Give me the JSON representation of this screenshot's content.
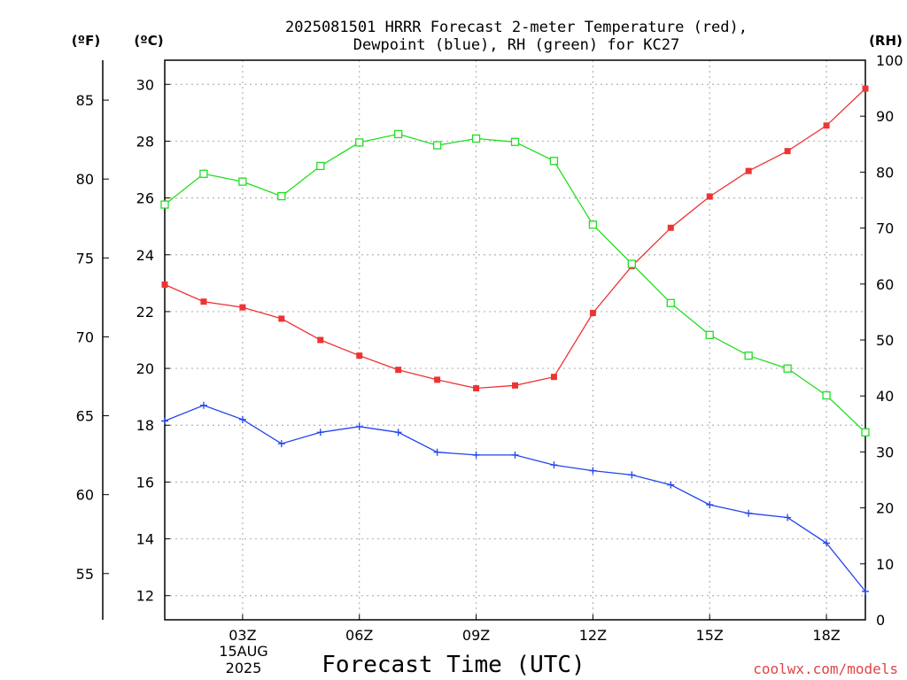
{
  "chart_data": {
    "type": "line",
    "title_line1": "2025081501 HRRR Forecast 2-meter Temperature (red),",
    "title_line2": "Dewpoint (blue), RH (green) for KC27",
    "xlabel": "Forecast Time (UTC)",
    "date_line1": "15AUG",
    "date_line2": "2025",
    "credit": "coolwx.com/models",
    "units": {
      "left_outer": "(ºF)",
      "left_inner": "(ºC)",
      "right": "(RH)"
    },
    "x_hours": [
      1,
      2,
      3,
      4,
      5,
      6,
      7,
      8,
      9,
      10,
      11,
      12,
      13,
      14,
      15,
      16,
      17,
      18,
      19
    ],
    "xlim": [
      1,
      19
    ],
    "x_ticks": [
      {
        "hour": 3,
        "label": "03Z"
      },
      {
        "hour": 6,
        "label": "06Z"
      },
      {
        "hour": 9,
        "label": "09Z"
      },
      {
        "hour": 12,
        "label": "12Z"
      },
      {
        "hour": 15,
        "label": "15Z"
      },
      {
        "hour": 18,
        "label": "18Z"
      }
    ],
    "y_celsius_lim": [
      11.15,
      30.85
    ],
    "y_celsius_ticks": [
      "12",
      "14",
      "16",
      "18",
      "20",
      "22",
      "24",
      "26",
      "28",
      "30"
    ],
    "y_fahrenheit_ticks": [
      "55",
      "60",
      "65",
      "70",
      "75",
      "80",
      "85"
    ],
    "y_rh_lim": [
      0,
      100
    ],
    "y_rh_ticks": [
      "0",
      "10",
      "20",
      "30",
      "40",
      "50",
      "60",
      "70",
      "80",
      "90",
      "100"
    ],
    "grid": true,
    "series": [
      {
        "name": "Temperature",
        "axis": "celsius",
        "color": "#ee3333",
        "marker": "filled-square",
        "values": [
          22.95,
          22.35,
          22.15,
          21.75,
          21.0,
          20.45,
          19.95,
          19.6,
          19.3,
          19.4,
          19.7,
          21.95,
          23.6,
          24.95,
          26.05,
          26.95,
          27.65,
          28.55,
          29.85
        ]
      },
      {
        "name": "Dewpoint",
        "axis": "celsius",
        "color": "#2244ee",
        "marker": "plus",
        "values": [
          18.15,
          18.7,
          18.2,
          17.35,
          17.75,
          17.95,
          17.75,
          17.05,
          16.95,
          16.95,
          16.6,
          16.4,
          16.25,
          15.9,
          15.2,
          14.9,
          14.75,
          13.85,
          12.15
        ]
      },
      {
        "name": "RH",
        "axis": "rh",
        "color": "#22dd22",
        "marker": "open-square",
        "values": [
          74.2,
          79.7,
          78.3,
          75.7,
          81.1,
          85.3,
          86.8,
          84.8,
          86.0,
          85.4,
          82.0,
          70.6,
          63.6,
          56.6,
          50.9,
          47.2,
          44.9,
          40.1,
          33.5
        ]
      }
    ]
  }
}
